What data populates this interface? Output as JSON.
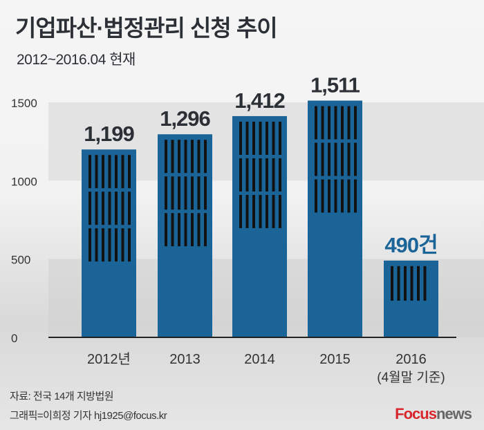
{
  "title": "기업파산·법정관리 신청 추이",
  "subtitle": "2012~2016.04 현재",
  "chart_data": {
    "type": "bar",
    "categories": [
      "2012년",
      "2013",
      "2014",
      "2015",
      "2016"
    ],
    "category_notes": [
      "",
      "",
      "",
      "",
      "(4월말 기준)"
    ],
    "values": [
      1199,
      1296,
      1412,
      1511,
      490
    ],
    "data_labels": [
      "1,199",
      "1,296",
      "1,412",
      "1,511",
      "490건"
    ],
    "yticks": [
      "0",
      "500",
      "1000",
      "1500"
    ],
    "ylim": [
      0,
      1500
    ],
    "xlabel": "",
    "ylabel": "",
    "bar_color": "#1b6497",
    "last_label_color": "#1b6497"
  },
  "source": "자료: 전국 14개 지방법원",
  "credit": "그래픽=이희정 기자 hj1925@focus.kr",
  "logo": {
    "brand": "Focus",
    "suffix": "news"
  }
}
